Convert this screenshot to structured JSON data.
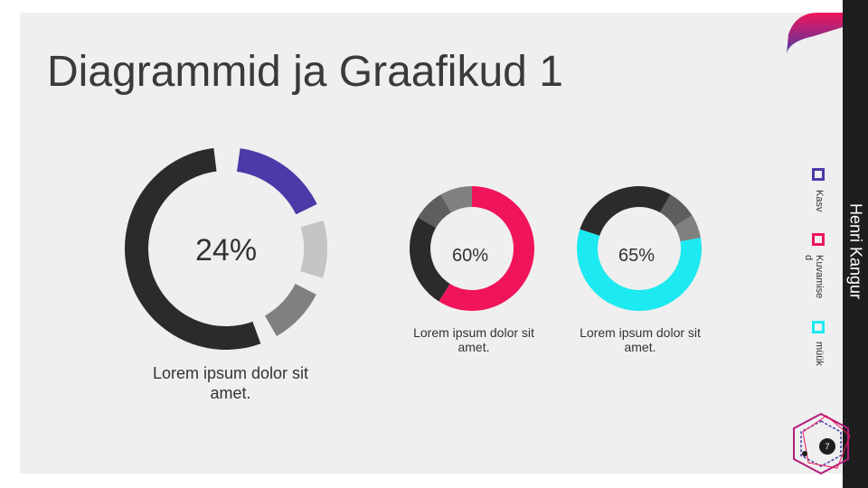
{
  "slide": {
    "title": "Diagrammid ja Graafikud 1",
    "author": "Henri Kangur",
    "page_number": "7"
  },
  "charts": [
    {
      "id": "big",
      "percent_label": "24%",
      "caption": "Lorem ipsum dolor sit amet."
    },
    {
      "id": "mid",
      "percent_label": "60%",
      "caption": "Lorem ipsum dolor sit amet."
    },
    {
      "id": "right",
      "percent_label": "65%",
      "caption": "Lorem ipsum dolor sit amet."
    }
  ],
  "legend": [
    {
      "label": "Kasv",
      "color": "#4b3aa8"
    },
    {
      "label": "Kuvamise d",
      "color": "#f0145a"
    },
    {
      "label": "müük",
      "color": "#1de9f0"
    }
  ],
  "colors": {
    "purple": "#4b3aa8",
    "pink": "#f0145a",
    "cyan": "#1de9f0",
    "dark": "#2b2b2b",
    "grey_dark": "#5e5e5e",
    "grey_mid": "#808080",
    "grey_light": "#c4c4c4"
  }
}
